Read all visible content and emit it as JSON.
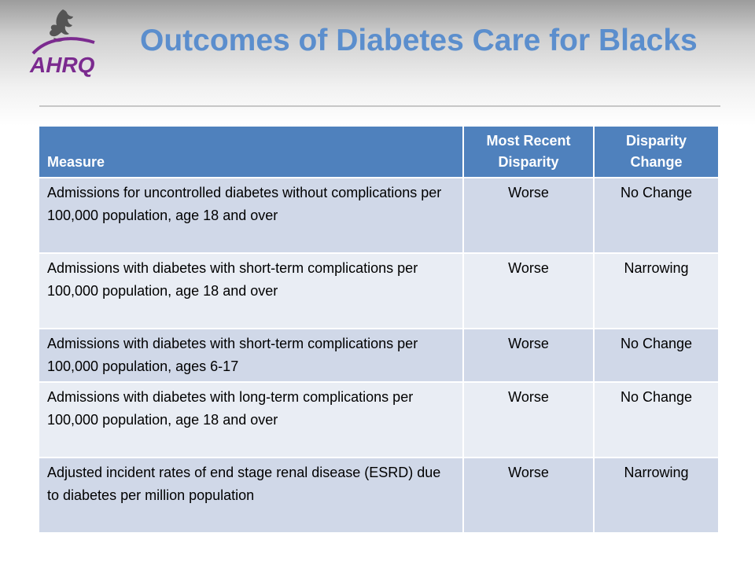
{
  "logo": {
    "text": "AHRQ",
    "colors": {
      "primary": "#7b2a8f",
      "eagle": "#555555"
    }
  },
  "page": {
    "title": "Outcomes of Diabetes Care for Blacks"
  },
  "table": {
    "headers": [
      "Measure",
      "Most Recent Disparity",
      "Disparity Change"
    ],
    "rows": [
      {
        "measure": "Admissions for uncontrolled diabetes without complications per 100,000 population, age 18 and over",
        "disparity": "Worse",
        "change": "No Change"
      },
      {
        "measure": "Admissions with diabetes with short-term complications per 100,000 population, age 18 and over",
        "disparity": "Worse",
        "change": "Narrowing"
      },
      {
        "measure": "Admissions with diabetes with short-term complications per 100,000 population, ages 6-17",
        "disparity": "Worse",
        "change": "No Change"
      },
      {
        "measure": "Admissions with diabetes with long-term complications per 100,000 population, age 18 and over",
        "disparity": "Worse",
        "change": "No Change"
      },
      {
        "measure": "Adjusted incident rates of end stage renal disease (ESRD) due to diabetes per million population",
        "disparity": "Worse",
        "change": "Narrowing"
      }
    ]
  },
  "colors": {
    "title": "#5b8ecd",
    "header_bg": "#4f81bd",
    "row_odd": "#d0d8e8",
    "row_even": "#e9edf4"
  }
}
